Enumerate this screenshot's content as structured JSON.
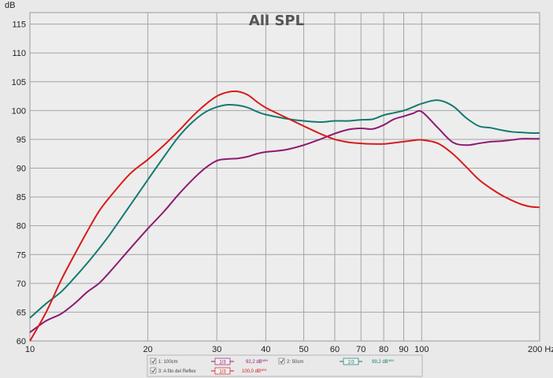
{
  "chart_data": {
    "type": "line",
    "title": "All SPL",
    "ylabel": "dB",
    "xunit": "Hz",
    "xscale": "log",
    "xlim": [
      10,
      200
    ],
    "ylim": [
      60,
      117
    ],
    "grid": true,
    "x_ticks": [
      10,
      20,
      30,
      40,
      50,
      60,
      70,
      80,
      90,
      100,
      200
    ],
    "x_tick_labels": [
      "10",
      "20",
      "30",
      "40",
      "50",
      "60",
      "70",
      "80",
      "90",
      "100",
      "200 Hz"
    ],
    "y_ticks": [
      60,
      65,
      70,
      75,
      80,
      85,
      90,
      95,
      100,
      105,
      110,
      115
    ],
    "series": [
      {
        "name": "1: 100cm",
        "color": "#8e1a73",
        "legend_value": "92,2 dB",
        "legend_suffix": "MIN",
        "smoothing": "1/3",
        "x": [
          10,
          11,
          12,
          13,
          14,
          15,
          16,
          18,
          20,
          22,
          24,
          26,
          28,
          30,
          32,
          34,
          36,
          38,
          40,
          45,
          50,
          55,
          60,
          65,
          70,
          75,
          80,
          85,
          90,
          95,
          100,
          110,
          120,
          130,
          140,
          150,
          160,
          170,
          180,
          190,
          200
        ],
        "y": [
          61.5,
          63.5,
          64.7,
          66.5,
          68.5,
          70,
          72,
          76,
          79.5,
          82.5,
          85.5,
          88,
          90,
          91.3,
          91.6,
          91.7,
          92,
          92.5,
          92.8,
          93.2,
          94,
          95,
          96,
          96.7,
          96.9,
          96.8,
          97.5,
          98.5,
          99,
          99.5,
          99.8,
          97,
          94.5,
          94,
          94.3,
          94.6,
          94.7,
          94.9,
          95.1,
          95.1,
          95.1
        ]
      },
      {
        "name": "2: 50cm",
        "color": "#157a70",
        "legend_value": "99,2 dB",
        "legend_suffix": "MIN",
        "smoothing": "1/3",
        "x": [
          10,
          11,
          12,
          13,
          14,
          15,
          16,
          18,
          20,
          22,
          24,
          26,
          28,
          30,
          32,
          34,
          36,
          38,
          40,
          45,
          50,
          55,
          60,
          65,
          70,
          75,
          80,
          85,
          90,
          95,
          100,
          110,
          120,
          130,
          140,
          150,
          160,
          170,
          180,
          190,
          200
        ],
        "y": [
          64,
          66.5,
          68.5,
          71,
          73.5,
          76,
          78.5,
          83.5,
          88,
          92,
          95.5,
          98,
          99.7,
          100.6,
          101,
          100.9,
          100.5,
          99.8,
          99.3,
          98.6,
          98.2,
          98,
          98.2,
          98.2,
          98.4,
          98.5,
          99.2,
          99.6,
          100,
          100.6,
          101.2,
          101.8,
          100.8,
          98.7,
          97.3,
          97,
          96.6,
          96.3,
          96.2,
          96.1,
          96.1
        ]
      },
      {
        "name": "3: A filo del Reflex",
        "color": "#d81b1b",
        "legend_value": "100,0 dB",
        "legend_suffix": "MIN",
        "smoothing": "1/3",
        "x": [
          10,
          11,
          12,
          13,
          14,
          15,
          16,
          18,
          20,
          22,
          24,
          26,
          28,
          30,
          32,
          34,
          36,
          38,
          40,
          45,
          50,
          55,
          60,
          65,
          70,
          75,
          80,
          85,
          90,
          95,
          100,
          110,
          120,
          130,
          140,
          150,
          160,
          170,
          180,
          190,
          200
        ],
        "y": [
          60,
          65,
          70.5,
          75,
          79,
          82.5,
          85,
          89,
          91.5,
          94,
          96.5,
          99,
          101,
          102.5,
          103.2,
          103.3,
          102.7,
          101.5,
          100.5,
          98.8,
          97.3,
          96,
          95,
          94.5,
          94.3,
          94.2,
          94.2,
          94.4,
          94.6,
          94.8,
          94.9,
          94.3,
          92.5,
          90.2,
          88,
          86.5,
          85.3,
          84.4,
          83.7,
          83.3,
          83.2
        ]
      }
    ]
  }
}
